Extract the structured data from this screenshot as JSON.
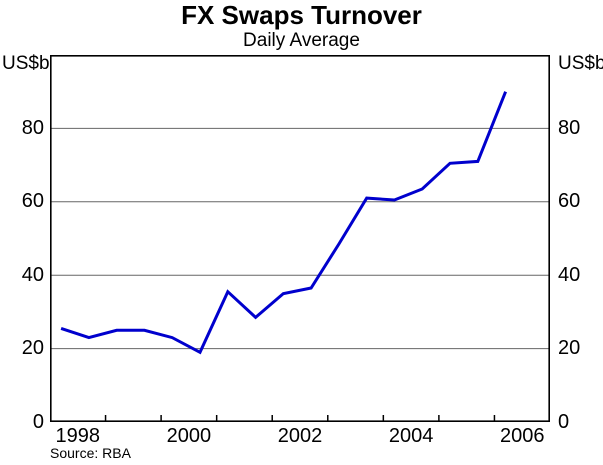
{
  "chart_data": {
    "type": "line",
    "title": "FX Swaps Turnover",
    "subtitle": "Daily Average",
    "unit_label": "US$b",
    "source": "Source: RBA",
    "series_name": "FX swaps turnover, daily average (US$b)",
    "x": [
      1998.2,
      1998.7,
      1999.2,
      1999.7,
      2000.2,
      2000.7,
      2001.2,
      2001.7,
      2002.2,
      2002.7,
      2003.2,
      2003.7,
      2004.2,
      2004.7,
      2005.2,
      2005.7,
      2006.2
    ],
    "values": [
      25.5,
      23,
      25,
      25,
      23,
      19,
      35.5,
      28.5,
      35,
      36.5,
      48.5,
      61,
      60.5,
      63.5,
      70.5,
      71,
      90
    ],
    "xlim": [
      1998,
      2007
    ],
    "ylim": [
      0,
      100
    ],
    "y_ticks": [
      0,
      20,
      40,
      60,
      80
    ],
    "x_boundary_ticks": [
      1999,
      2000,
      2001,
      2002,
      2003,
      2004,
      2005,
      2006
    ],
    "x_tick_labels": [
      {
        "label": "1998",
        "pos": 1998.5
      },
      {
        "label": "2000",
        "pos": 2000.5
      },
      {
        "label": "2002",
        "pos": 2002.5
      },
      {
        "label": "2004",
        "pos": 2004.5
      },
      {
        "label": "2006",
        "pos": 2006.5
      }
    ],
    "grid": true,
    "legend": "none",
    "line_color": "#0000CD",
    "grid_color": "#666666",
    "frame_color": "#000000",
    "text_color": "#000000"
  }
}
